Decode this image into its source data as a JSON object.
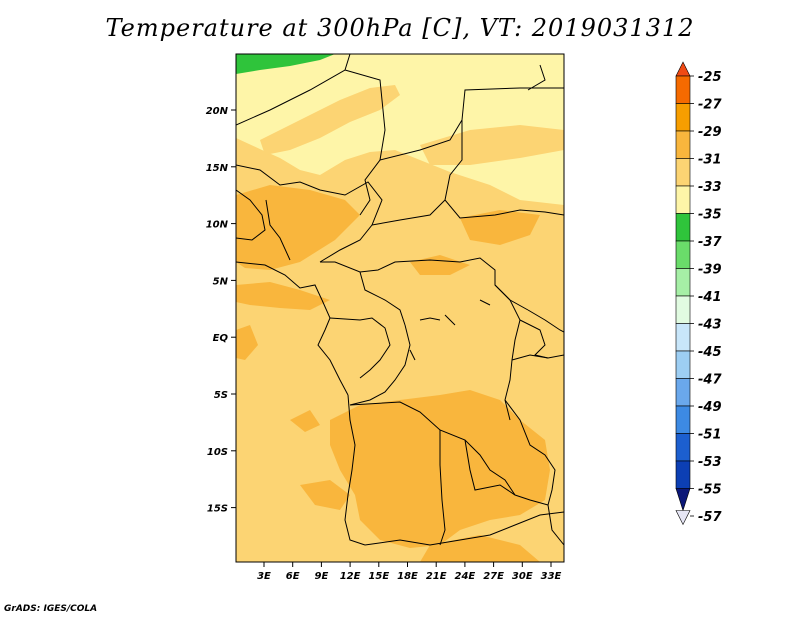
{
  "title": "Temperature at 300hPa [C], VT: 2019031312",
  "credit": "GrADS: IGES/COLA",
  "axes": {
    "lon_labels": [
      "3E",
      "6E",
      "9E",
      "12E",
      "15E",
      "18E",
      "21E",
      "24E",
      "27E",
      "30E",
      "33E"
    ],
    "lat_labels": [
      "20N",
      "15N",
      "10N",
      "5N",
      "EQ",
      "5S",
      "10S",
      "15S"
    ]
  },
  "legend": {
    "labels": [
      "-25",
      "-27",
      "-29",
      "-31",
      "-33",
      "-35",
      "-37",
      "-39",
      "-41",
      "-43",
      "-45",
      "-47",
      "-49",
      "-51",
      "-53",
      "-55",
      "-57"
    ],
    "colors": [
      "#f04a14",
      "#f56a00",
      "#f79e00",
      "#f9b63d",
      "#fcd473",
      "#fef5a8",
      "#2fc43b",
      "#6adc6a",
      "#a6efa6",
      "#e1fbe1",
      "#c8e6fa",
      "#9dcef3",
      "#6aa8ec",
      "#3d8ae3",
      "#1c5fcf",
      "#0c3fb4",
      "#0b1778"
    ]
  }
}
